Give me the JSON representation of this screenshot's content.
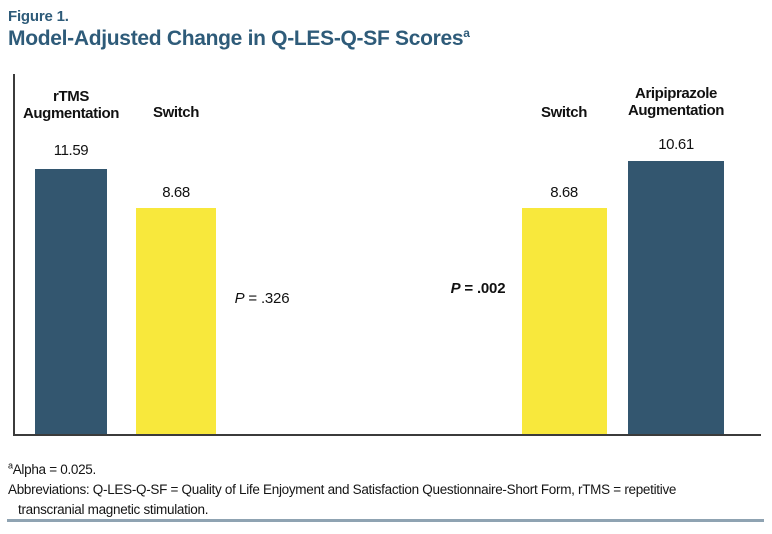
{
  "figure": {
    "label": "Figure 1.",
    "title": "Model-Adjusted Change in Q-LES-Q-SF Scores",
    "title_note_marker": "a"
  },
  "chart_data": {
    "type": "bar",
    "title": "Model-Adjusted Change in Q-LES-Q-SF Scores",
    "categories": [
      "rTMS Augmentation",
      "Switch",
      "Switch",
      "Aripiprazole Augmentation"
    ],
    "values": [
      11.59,
      8.68,
      8.68,
      10.61
    ],
    "value_labels": [
      "11.59",
      "8.68",
      "8.68",
      "10.61"
    ],
    "bar_colors": [
      "#33566F",
      "#F8E83C",
      "#F8E83C",
      "#33566F"
    ],
    "annotations": [
      {
        "text": "P = .326",
        "bold": false
      },
      {
        "text": "P = .002",
        "bold": true
      }
    ],
    "ylim": [
      0,
      13
    ],
    "grid": false,
    "legend": false,
    "axes": [
      "left",
      "bottom"
    ]
  },
  "bars": [
    {
      "label": "rTMS\nAugmentation",
      "value": "11.59"
    },
    {
      "label": "Switch",
      "value": "8.68"
    },
    {
      "label": "Switch",
      "value": "8.68"
    },
    {
      "label": "Aripiprazole\nAugmentation",
      "value": "10.61"
    }
  ],
  "p_values": [
    {
      "p": "P",
      "rest": " = .326"
    },
    {
      "p": "P",
      "rest": " = .002"
    }
  ],
  "footnotes": {
    "alpha_marker": "a",
    "alpha_text": "Alpha = 0.025.",
    "abbreviations": "Abbreviations: Q-LES-Q-SF = Quality of Life Enjoyment and Satisfaction Questionnaire-Short Form, rTMS = repetitive\ntranscranial magnetic stimulation."
  },
  "colors": {
    "title": "#2E5B79",
    "bar_dark": "#33566F",
    "bar_yellow": "#F8E83C",
    "axis": "#3B3B3B",
    "bottom_rule": "#8FA3B2"
  }
}
